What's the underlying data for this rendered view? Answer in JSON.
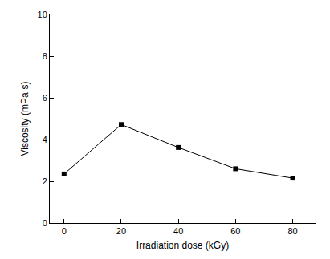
{
  "chart_data": {
    "type": "line",
    "x_label": "Irradiation dose (kGy)",
    "y_label": "Viscosity (mPa·s)",
    "x": [
      0,
      20,
      40,
      60,
      80
    ],
    "values": [
      2.35,
      4.72,
      3.62,
      2.6,
      2.15
    ],
    "color": "#000000",
    "marker": "square",
    "line_style": "solid",
    "xlim": [
      -5,
      88
    ],
    "xticks": [
      0,
      20,
      40,
      60,
      80
    ],
    "ylim": [
      0,
      10
    ],
    "yticks": [
      0,
      2,
      4,
      6,
      8,
      10
    ],
    "grid": false
  }
}
